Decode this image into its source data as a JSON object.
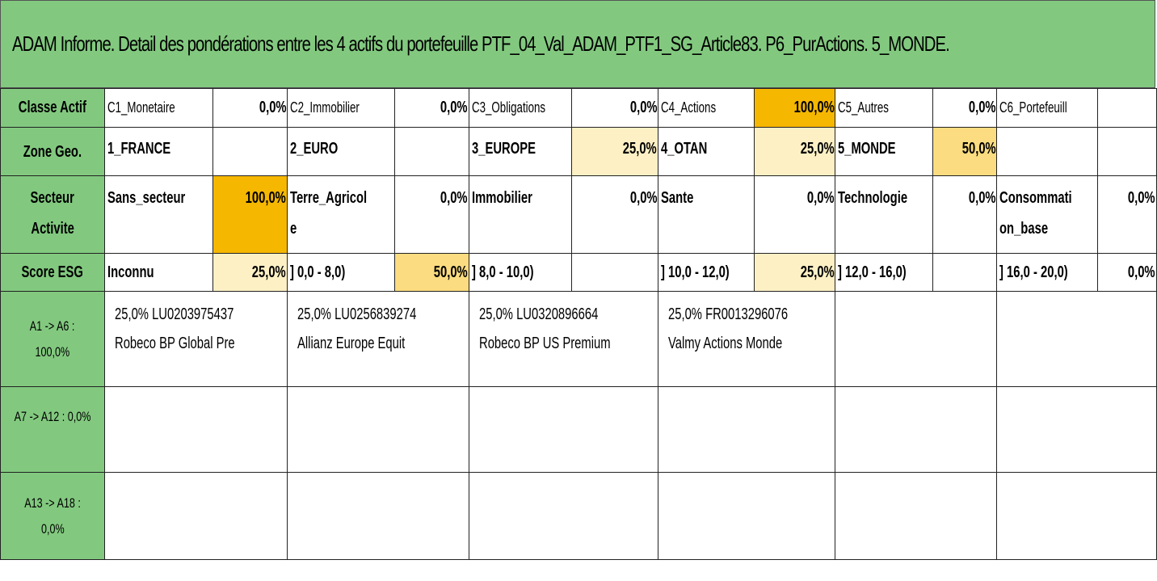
{
  "title": "ADAM Informe. Detail des pondérations entre les 4 actifs du portefeuille PTF_04_Val_ADAM_PTF1_SG_Article83. P6_PurActions. 5_MONDE.",
  "classe_actif": {
    "label": "Classe Actif",
    "items": [
      {
        "name": "C1_Monetaire",
        "pct": "0,0%"
      },
      {
        "name": "C2_Immobilier",
        "pct": "0,0%"
      },
      {
        "name": "C3_Obligations",
        "pct": "0,0%"
      },
      {
        "name": "C4_Actions",
        "pct": "100,0%"
      },
      {
        "name": "C5_Autres",
        "pct": "0,0%"
      },
      {
        "name": "C6_Portefeuill",
        "pct": ""
      }
    ]
  },
  "zone_geo": {
    "label": "Zone Geo.",
    "items": [
      {
        "name": "1_FRANCE",
        "pct": ""
      },
      {
        "name": "2_EURO",
        "pct": ""
      },
      {
        "name": "3_EUROPE",
        "pct": "25,0%"
      },
      {
        "name": "4_OTAN",
        "pct": "25,0%"
      },
      {
        "name": "5_MONDE",
        "pct": "50,0%"
      },
      {
        "name": "",
        "pct": ""
      }
    ]
  },
  "secteur": {
    "label_line1": "Secteur",
    "label_line2": "Activite",
    "items": [
      {
        "name_line1": "Sans_secteur",
        "name_line2": "",
        "pct": "100,0%"
      },
      {
        "name_line1": "Terre_Agricol",
        "name_line2": "e",
        "pct": "0,0%"
      },
      {
        "name_line1": "Immobilier",
        "name_line2": "",
        "pct": "0,0%"
      },
      {
        "name_line1": "Sante",
        "name_line2": "",
        "pct": "0,0%"
      },
      {
        "name_line1": "Technologie",
        "name_line2": "",
        "pct": "0,0%"
      },
      {
        "name_line1": "Consommati",
        "name_line2": "on_base",
        "pct": "0,0%"
      }
    ]
  },
  "score_esg": {
    "label": "Score ESG",
    "items": [
      {
        "name": "Inconnu",
        "pct": "25,0%"
      },
      {
        "name": "] 0,0 - 8,0)",
        "pct": "50,0%"
      },
      {
        "name": "] 8,0 - 10,0)",
        "pct": ""
      },
      {
        "name": "] 10,0 - 12,0)",
        "pct": "25,0%"
      },
      {
        "name": "] 12,0 - 16,0)",
        "pct": ""
      },
      {
        "name": "] 16,0 - 20,0)",
        "pct": "0,0%"
      }
    ]
  },
  "asset_groups": [
    {
      "label_line1": "A1 -> A6 :",
      "label_line2": "100,0%",
      "assets": [
        {
          "line1": "25,0% LU0203975437",
          "line2": "Robeco BP Global Pre"
        },
        {
          "line1": "25,0% LU0256839274",
          "line2": "Allianz Europe Equit"
        },
        {
          "line1": "25,0% LU0320896664",
          "line2": "Robeco BP US Premium"
        },
        {
          "line1": "25,0% FR0013296076",
          "line2": "Valmy Actions Monde"
        }
      ]
    },
    {
      "label_line1": "A7 -> A12 : 0,0%",
      "label_line2": "",
      "assets": []
    },
    {
      "label_line1": "A13 -> A18 :",
      "label_line2": "0,0%",
      "assets": []
    }
  ],
  "colors": {
    "header_green": "#82c97f",
    "highlight_dark": "#f6b700",
    "highlight_medium": "#fbdc80",
    "highlight_light": "#fdf0c5"
  }
}
